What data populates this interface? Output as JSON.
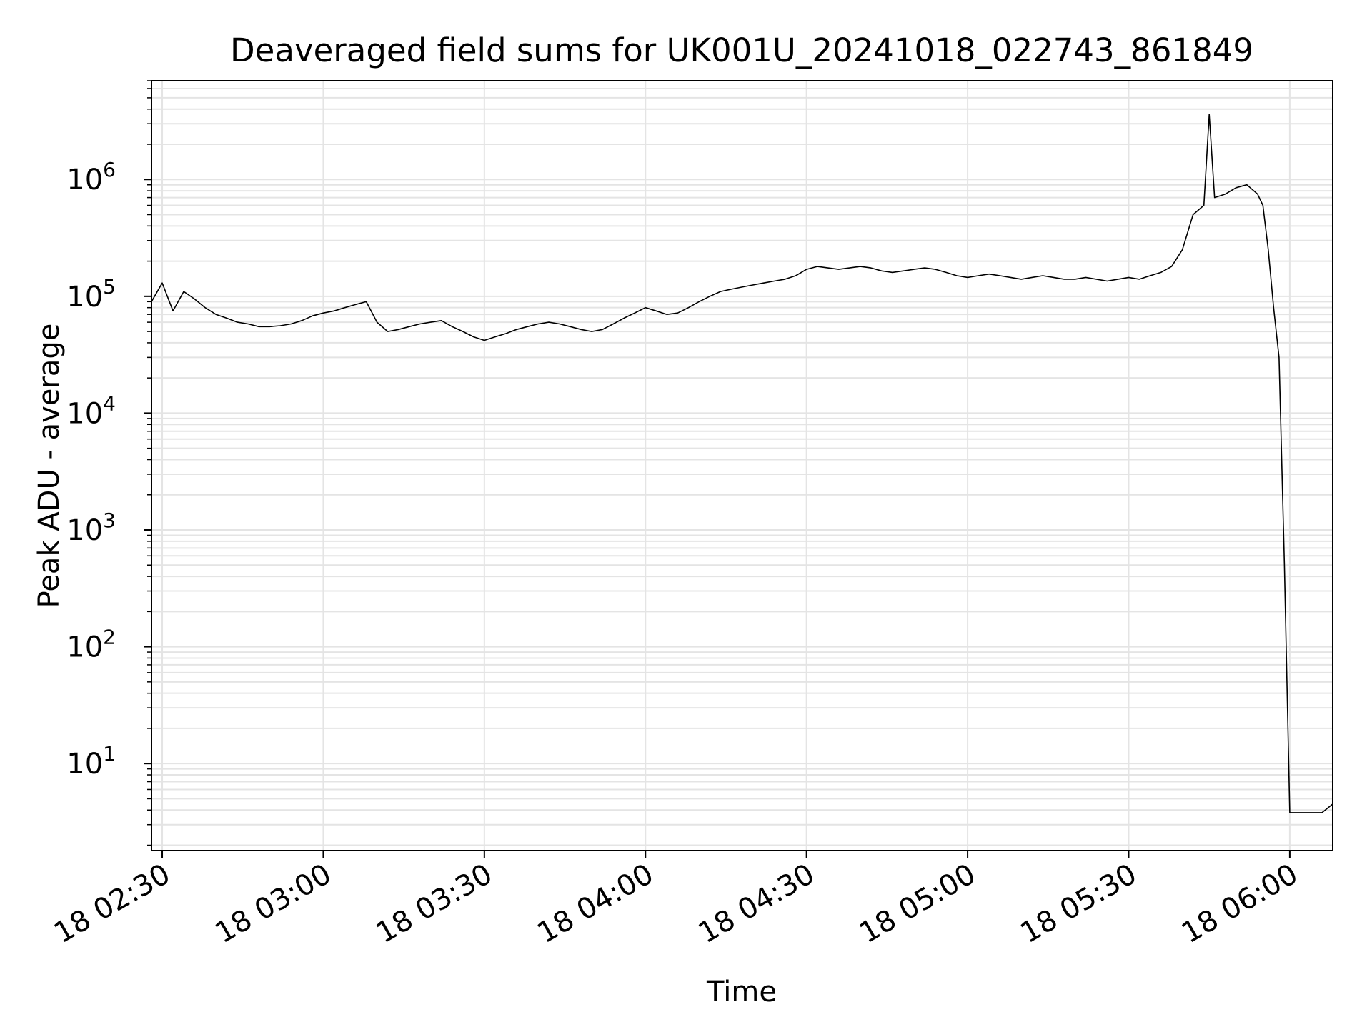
{
  "chart_data": {
    "type": "line",
    "title": "Deaveraged field sums for UK001U_20241018_022743_861849",
    "xlabel": "Time",
    "ylabel": "Peak ADU - average",
    "xscale": "time",
    "yscale": "log",
    "grid": true,
    "xlim": [
      "2024-10-18 02:28",
      "2024-10-18 06:08"
    ],
    "ylim": [
      1.8,
      7000000
    ],
    "x_ticks": [
      {
        "value": "2024-10-18 02:30",
        "label": "18 02:30"
      },
      {
        "value": "2024-10-18 03:00",
        "label": "18 03:00"
      },
      {
        "value": "2024-10-18 03:30",
        "label": "18 03:30"
      },
      {
        "value": "2024-10-18 04:00",
        "label": "18 04:00"
      },
      {
        "value": "2024-10-18 04:30",
        "label": "18 04:30"
      },
      {
        "value": "2024-10-18 05:00",
        "label": "18 05:00"
      },
      {
        "value": "2024-10-18 05:30",
        "label": "18 05:30"
      },
      {
        "value": "2024-10-18 06:00",
        "label": "18 06:00"
      }
    ],
    "y_ticks": [
      {
        "value": 10,
        "base": "10",
        "exp": "1"
      },
      {
        "value": 100,
        "base": "10",
        "exp": "2"
      },
      {
        "value": 1000,
        "base": "10",
        "exp": "3"
      },
      {
        "value": 10000,
        "base": "10",
        "exp": "4"
      },
      {
        "value": 100000,
        "base": "10",
        "exp": "5"
      },
      {
        "value": 1000000,
        "base": "10",
        "exp": "6"
      }
    ],
    "series": [
      {
        "color": "#000000",
        "points": [
          [
            "2024-10-18 02:28",
            90000
          ],
          [
            "2024-10-18 02:30",
            130000
          ],
          [
            "2024-10-18 02:32",
            75000
          ],
          [
            "2024-10-18 02:34",
            110000
          ],
          [
            "2024-10-18 02:36",
            95000
          ],
          [
            "2024-10-18 02:38",
            80000
          ],
          [
            "2024-10-18 02:40",
            70000
          ],
          [
            "2024-10-18 02:42",
            65000
          ],
          [
            "2024-10-18 02:44",
            60000
          ],
          [
            "2024-10-18 02:46",
            58000
          ],
          [
            "2024-10-18 02:48",
            55000
          ],
          [
            "2024-10-18 02:50",
            55000
          ],
          [
            "2024-10-18 02:52",
            56000
          ],
          [
            "2024-10-18 02:54",
            58000
          ],
          [
            "2024-10-18 02:56",
            62000
          ],
          [
            "2024-10-18 02:58",
            68000
          ],
          [
            "2024-10-18 03:00",
            72000
          ],
          [
            "2024-10-18 03:02",
            75000
          ],
          [
            "2024-10-18 03:04",
            80000
          ],
          [
            "2024-10-18 03:06",
            85000
          ],
          [
            "2024-10-18 03:08",
            90000
          ],
          [
            "2024-10-18 03:10",
            60000
          ],
          [
            "2024-10-18 03:12",
            50000
          ],
          [
            "2024-10-18 03:14",
            52000
          ],
          [
            "2024-10-18 03:16",
            55000
          ],
          [
            "2024-10-18 03:18",
            58000
          ],
          [
            "2024-10-18 03:20",
            60000
          ],
          [
            "2024-10-18 03:22",
            62000
          ],
          [
            "2024-10-18 03:24",
            55000
          ],
          [
            "2024-10-18 03:26",
            50000
          ],
          [
            "2024-10-18 03:28",
            45000
          ],
          [
            "2024-10-18 03:30",
            42000
          ],
          [
            "2024-10-18 03:32",
            45000
          ],
          [
            "2024-10-18 03:34",
            48000
          ],
          [
            "2024-10-18 03:36",
            52000
          ],
          [
            "2024-10-18 03:38",
            55000
          ],
          [
            "2024-10-18 03:40",
            58000
          ],
          [
            "2024-10-18 03:42",
            60000
          ],
          [
            "2024-10-18 03:44",
            58000
          ],
          [
            "2024-10-18 03:46",
            55000
          ],
          [
            "2024-10-18 03:48",
            52000
          ],
          [
            "2024-10-18 03:50",
            50000
          ],
          [
            "2024-10-18 03:52",
            52000
          ],
          [
            "2024-10-18 03:54",
            58000
          ],
          [
            "2024-10-18 03:56",
            65000
          ],
          [
            "2024-10-18 03:58",
            72000
          ],
          [
            "2024-10-18 04:00",
            80000
          ],
          [
            "2024-10-18 04:02",
            75000
          ],
          [
            "2024-10-18 04:04",
            70000
          ],
          [
            "2024-10-18 04:06",
            72000
          ],
          [
            "2024-10-18 04:08",
            80000
          ],
          [
            "2024-10-18 04:10",
            90000
          ],
          [
            "2024-10-18 04:12",
            100000
          ],
          [
            "2024-10-18 04:14",
            110000
          ],
          [
            "2024-10-18 04:16",
            115000
          ],
          [
            "2024-10-18 04:18",
            120000
          ],
          [
            "2024-10-18 04:20",
            125000
          ],
          [
            "2024-10-18 04:22",
            130000
          ],
          [
            "2024-10-18 04:24",
            135000
          ],
          [
            "2024-10-18 04:26",
            140000
          ],
          [
            "2024-10-18 04:28",
            150000
          ],
          [
            "2024-10-18 04:30",
            170000
          ],
          [
            "2024-10-18 04:32",
            180000
          ],
          [
            "2024-10-18 04:34",
            175000
          ],
          [
            "2024-10-18 04:36",
            170000
          ],
          [
            "2024-10-18 04:38",
            175000
          ],
          [
            "2024-10-18 04:40",
            180000
          ],
          [
            "2024-10-18 04:42",
            175000
          ],
          [
            "2024-10-18 04:44",
            165000
          ],
          [
            "2024-10-18 04:46",
            160000
          ],
          [
            "2024-10-18 04:48",
            165000
          ],
          [
            "2024-10-18 04:50",
            170000
          ],
          [
            "2024-10-18 04:52",
            175000
          ],
          [
            "2024-10-18 04:54",
            170000
          ],
          [
            "2024-10-18 04:56",
            160000
          ],
          [
            "2024-10-18 04:58",
            150000
          ],
          [
            "2024-10-18 05:00",
            145000
          ],
          [
            "2024-10-18 05:02",
            150000
          ],
          [
            "2024-10-18 05:04",
            155000
          ],
          [
            "2024-10-18 05:06",
            150000
          ],
          [
            "2024-10-18 05:08",
            145000
          ],
          [
            "2024-10-18 05:10",
            140000
          ],
          [
            "2024-10-18 05:12",
            145000
          ],
          [
            "2024-10-18 05:14",
            150000
          ],
          [
            "2024-10-18 05:16",
            145000
          ],
          [
            "2024-10-18 05:18",
            140000
          ],
          [
            "2024-10-18 05:20",
            140000
          ],
          [
            "2024-10-18 05:22",
            145000
          ],
          [
            "2024-10-18 05:24",
            140000
          ],
          [
            "2024-10-18 05:26",
            135000
          ],
          [
            "2024-10-18 05:28",
            140000
          ],
          [
            "2024-10-18 05:30",
            145000
          ],
          [
            "2024-10-18 05:32",
            140000
          ],
          [
            "2024-10-18 05:34",
            150000
          ],
          [
            "2024-10-18 05:36",
            160000
          ],
          [
            "2024-10-18 05:38",
            180000
          ],
          [
            "2024-10-18 05:40",
            250000
          ],
          [
            "2024-10-18 05:42",
            500000
          ],
          [
            "2024-10-18 05:44",
            600000
          ],
          [
            "2024-10-18 05:45",
            3600000
          ],
          [
            "2024-10-18 05:46",
            700000
          ],
          [
            "2024-10-18 05:48",
            750000
          ],
          [
            "2024-10-18 05:50",
            850000
          ],
          [
            "2024-10-18 05:52",
            900000
          ],
          [
            "2024-10-18 05:54",
            750000
          ],
          [
            "2024-10-18 05:55",
            600000
          ],
          [
            "2024-10-18 05:56",
            250000
          ],
          [
            "2024-10-18 05:57",
            80000
          ],
          [
            "2024-10-18 05:58",
            30000
          ],
          [
            "2024-10-18 05:59",
            500
          ],
          [
            "2024-10-18 06:00",
            3.8
          ],
          [
            "2024-10-18 06:02",
            3.8
          ],
          [
            "2024-10-18 06:04",
            3.8
          ],
          [
            "2024-10-18 06:06",
            3.8
          ],
          [
            "2024-10-18 06:08",
            4.5
          ]
        ]
      }
    ]
  }
}
